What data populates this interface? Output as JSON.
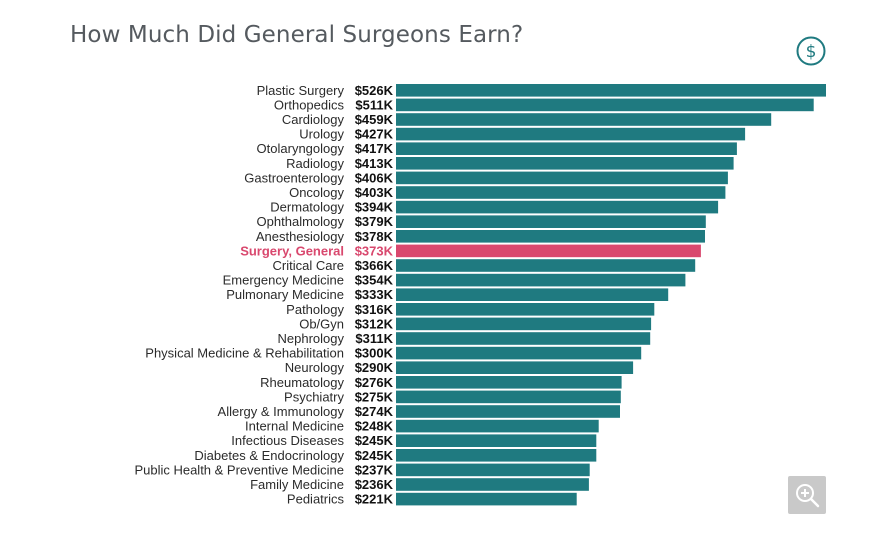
{
  "header": {
    "title": "How Much Did General Surgeons Earn?"
  },
  "icons": {
    "top_right": "dollar-circle-icon",
    "bottom_right": "zoom-in-icon"
  },
  "colors": {
    "bar": "#1f7a80",
    "highlight_bar": "#d9486e",
    "highlight_label": "#d9486e",
    "label": "#2b2b2b",
    "value": "#111111"
  },
  "chart_data": {
    "type": "bar",
    "orientation": "horizontal",
    "title": "How Much Did General Surgeons Earn?",
    "xlim": [
      0,
      526
    ],
    "highlight": "Surgery, General",
    "categories": [
      "Plastic Surgery",
      "Orthopedics",
      "Cardiology",
      "Urology",
      "Otolaryngology",
      "Radiology",
      "Gastroenterology",
      "Oncology",
      "Dermatology",
      "Ophthalmology",
      "Anesthesiology",
      "Surgery, General",
      "Critical Care",
      "Emergency Medicine",
      "Pulmonary Medicine",
      "Pathology",
      "Ob/Gyn",
      "Nephrology",
      "Physical Medicine & Rehabilitation",
      "Neurology",
      "Rheumatology",
      "Psychiatry",
      "Allergy & Immunology",
      "Internal Medicine",
      "Infectious Diseases",
      "Diabetes & Endocrinology",
      "Public Health & Preventive Medicine",
      "Family Medicine",
      "Pediatrics"
    ],
    "values": [
      526,
      511,
      459,
      427,
      417,
      413,
      406,
      403,
      394,
      379,
      378,
      373,
      366,
      354,
      333,
      316,
      312,
      311,
      300,
      290,
      276,
      275,
      274,
      248,
      245,
      245,
      237,
      236,
      221
    ],
    "value_labels": [
      "$526K",
      "$511K",
      "$459K",
      "$427K",
      "$417K",
      "$413K",
      "$406K",
      "$403K",
      "$394K",
      "$379K",
      "$378K",
      "$373K",
      "$366K",
      "$354K",
      "$333K",
      "$316K",
      "$312K",
      "$311K",
      "$300K",
      "$290K",
      "$276K",
      "$275K",
      "$274K",
      "$248K",
      "$245K",
      "$245K",
      "$237K",
      "$236K",
      "$221K"
    ]
  }
}
